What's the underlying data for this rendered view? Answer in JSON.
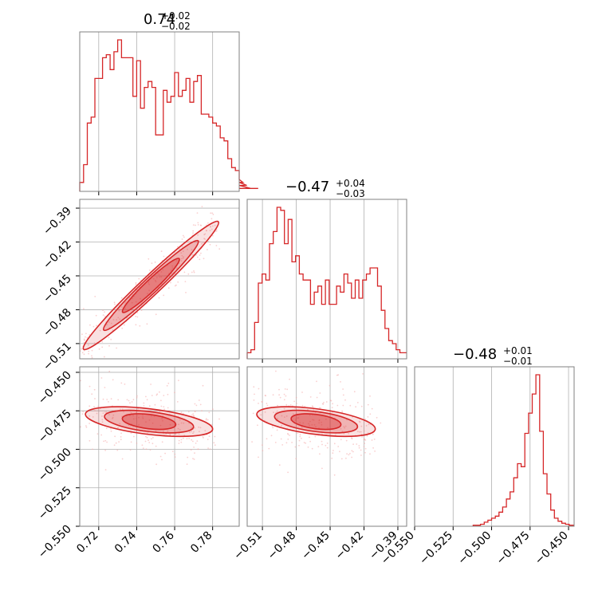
{
  "colors": {
    "accent": "#d62728",
    "accent_light": "#f4a9aa",
    "grid": "#b0b0b0",
    "frame": "#808080"
  },
  "titles": [
    {
      "value": "0.74",
      "plus": "+0.02",
      "minus": "−0.02"
    },
    {
      "value": "−0.47",
      "plus": "+0.04",
      "minus": "−0.03"
    },
    {
      "value": "−0.48",
      "plus": "+0.01",
      "minus": "−0.01"
    }
  ],
  "chart_data": [
    {
      "type": "histogram",
      "param_index": 0,
      "xlim": [
        0.71,
        0.794
      ],
      "bin_edges_start": 0.71,
      "bin_width": 0.002,
      "counts": [
        3,
        9,
        23,
        25,
        38,
        38,
        45,
        46,
        41,
        47,
        51,
        45,
        45,
        45,
        32,
        44,
        28,
        35,
        37,
        35,
        19,
        19,
        34,
        30,
        32,
        40,
        32,
        34,
        38,
        30,
        37,
        39,
        26,
        26,
        25,
        23,
        22,
        18,
        17,
        11,
        8,
        7,
        4,
        3,
        2,
        1,
        1,
        1
      ],
      "x_ticks": [
        "0.72",
        "0.74",
        "0.76",
        "0.78"
      ],
      "x_tick_values": [
        0.72,
        0.74,
        0.76,
        0.78
      ]
    },
    {
      "type": "contour",
      "x_param": 0,
      "y_param": 1,
      "xlim": [
        0.71,
        0.794
      ],
      "ylim": [
        -0.5235,
        -0.3822
      ],
      "y_ticks": [
        "−0.39",
        "−0.42",
        "−0.45",
        "−0.48",
        "−0.51"
      ],
      "y_tick_values": [
        -0.39,
        -0.42,
        -0.45,
        -0.48,
        -0.51
      ],
      "trend": {
        "x": [
          0.712,
          0.783
        ],
        "y": [
          -0.515,
          -0.402
        ]
      }
    },
    {
      "type": "histogram",
      "param_index": 1,
      "xlim": [
        -0.5235,
        -0.3822
      ],
      "bin_edges_start": -0.5235,
      "bin_width": 0.0033,
      "counts": [
        2,
        3,
        12,
        25,
        28,
        26,
        38,
        42,
        50,
        49,
        38,
        46,
        32,
        34,
        28,
        26,
        26,
        18,
        22,
        24,
        18,
        26,
        18,
        18,
        24,
        22,
        28,
        25,
        20,
        26,
        20,
        26,
        28,
        30,
        30,
        24,
        16,
        10,
        6,
        5,
        3,
        2,
        2
      ],
      "x_ticks": [
        "−0.51",
        "−0.48",
        "−0.45",
        "−0.42",
        "−0.39"
      ],
      "x_tick_values": [
        -0.51,
        -0.48,
        -0.45,
        -0.42,
        -0.39
      ]
    },
    {
      "type": "contour",
      "x_param": 0,
      "y_param": 2,
      "xlim": [
        0.71,
        0.794
      ],
      "ylim": [
        -0.55,
        -0.4464
      ],
      "y_ticks": [
        "−0.450",
        "−0.475",
        "−0.500",
        "−0.525",
        "−0.550"
      ],
      "y_tick_values": [
        -0.45,
        -0.475,
        -0.5,
        -0.525,
        -0.55
      ],
      "x_ticks": [
        "0.72",
        "0.74",
        "0.76",
        "0.78"
      ],
      "x_tick_values": [
        0.72,
        0.74,
        0.76,
        0.78
      ],
      "trend": {
        "x": [
          0.713,
          0.78
        ],
        "y": [
          -0.477,
          -0.487
        ]
      }
    },
    {
      "type": "contour",
      "x_param": 1,
      "y_param": 2,
      "xlim": [
        -0.5235,
        -0.3822
      ],
      "ylim": [
        -0.55,
        -0.4464
      ],
      "x_ticks": [
        "−0.51",
        "−0.48",
        "−0.45",
        "−0.42",
        "−0.39"
      ],
      "x_tick_values": [
        -0.51,
        -0.48,
        -0.45,
        -0.42,
        -0.39
      ],
      "trend": {
        "x": [
          -0.515,
          -0.41
        ],
        "y": [
          -0.477,
          -0.487
        ]
      }
    },
    {
      "type": "histogram",
      "param_index": 2,
      "xlim": [
        -0.55,
        -0.4464
      ],
      "bin_edges_start": -0.512,
      "bin_width": 0.0024,
      "counts": [
        1,
        1,
        2,
        4,
        6,
        8,
        10,
        14,
        19,
        27,
        34,
        48,
        62,
        59,
        92,
        112,
        131,
        150,
        94,
        52,
        32,
        16,
        8,
        5,
        3,
        2,
        1,
        1
      ],
      "x_ticks": [
        "−0.550",
        "−0.525",
        "−0.500",
        "−0.475",
        "−0.450"
      ],
      "x_tick_values": [
        -0.55,
        -0.525,
        -0.5,
        -0.475,
        -0.45
      ]
    }
  ]
}
